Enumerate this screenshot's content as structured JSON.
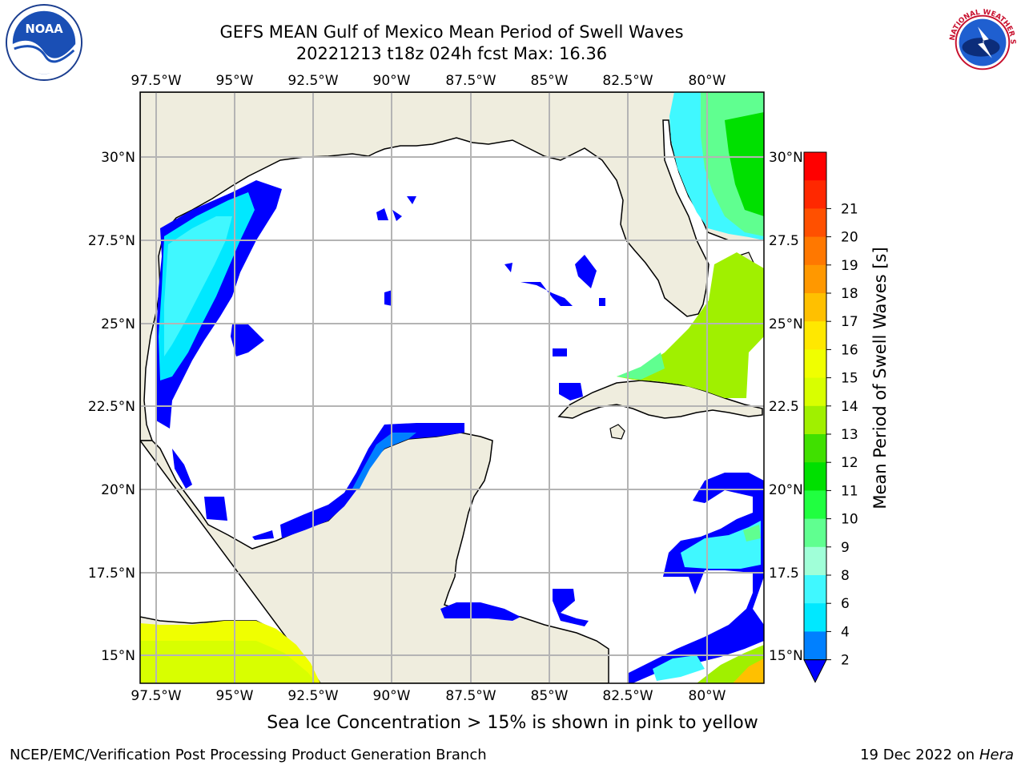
{
  "title": {
    "line1": "GEFS MEAN Gulf of Mexico Mean Period of Swell Waves",
    "line2": "20221213 t18z 024h fcst   Max: 16.36"
  },
  "map": {
    "lon_labels": [
      "97.5°W",
      "95°W",
      "92.5°W",
      "90°W",
      "87.5°W",
      "85°W",
      "82.5°W",
      "80°W"
    ],
    "lat_labels_left": [
      "30°N",
      "27.5°N",
      "25°N",
      "22.5°N",
      "20°N",
      "17.5°N",
      "15°N"
    ],
    "lat_labels_right": [
      "30°N",
      "27.5",
      "25°N",
      "22.5",
      "20°N",
      "17.5",
      "15°N"
    ],
    "colors": {
      "land": "#efedde",
      "ocean": "#ffffff",
      "grid": "#b4b4b4",
      "coast": "#000000"
    }
  },
  "colorbar": {
    "label": "Mean Period of Swell Waves [s]",
    "ticks": [
      "2",
      "4",
      "6",
      "8",
      "9",
      "10",
      "11",
      "12",
      "13",
      "14",
      "15",
      "16",
      "17",
      "18",
      "19",
      "20",
      "21"
    ],
    "colors": [
      "#0000ff",
      "#0080ff",
      "#00e8ff",
      "#40f8ff",
      "#80ffff",
      "#a0ffd8",
      "#60ff90",
      "#20ff40",
      "#00e000",
      "#40e000",
      "#a0f000",
      "#d8ff00",
      "#f0ff00",
      "#ffe800",
      "#ffc000",
      "#ff9800",
      "#ff7800",
      "#ff5000",
      "#ff2800",
      "#ff0000"
    ]
  },
  "footer": {
    "note": "Sea Ice Concentration > 15% is shown in pink to yellow",
    "left": "NCEP/EMC/Verification Post Processing Product Generation Branch",
    "right_date": "19 Dec 2022 on",
    "right_host": "Hera"
  },
  "logos": {
    "noaa": "NOAA",
    "nws": "NATIONAL WEATHER SERVICE"
  }
}
